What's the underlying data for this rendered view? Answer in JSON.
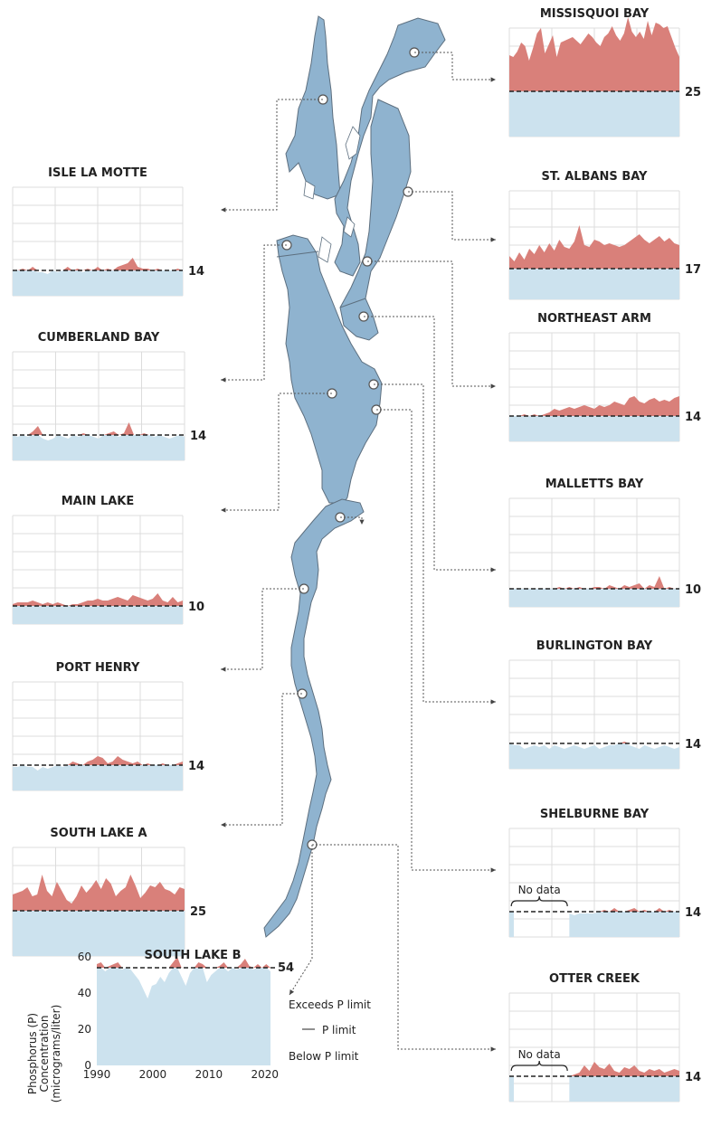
{
  "colors": {
    "exceed": "#d9807a",
    "below": "#cce2ee",
    "lake": "#8fb3cf",
    "lake_stroke": "#5d6f7f",
    "grid": "#dcdcdc"
  },
  "chart_data": [
    {
      "type": "area",
      "title": "MISSISQUOI BAY",
      "limit": 25,
      "limit_label": "25",
      "side": "right",
      "ylim": [
        0,
        60
      ],
      "values": [
        45,
        44,
        47,
        52,
        50,
        42,
        49,
        57,
        60,
        46,
        51,
        56,
        44,
        52,
        53,
        54,
        55,
        53,
        51,
        54,
        57,
        55,
        52,
        50,
        55,
        57,
        61,
        56,
        53,
        57,
        66,
        58,
        55,
        58,
        54,
        64,
        56,
        63,
        62,
        60,
        61,
        55,
        49,
        44
      ]
    },
    {
      "type": "area",
      "title": "ST. ALBANS BAY",
      "limit": 17,
      "limit_label": "17",
      "side": "right",
      "ylim": [
        0,
        60
      ],
      "values": [
        24,
        21,
        26,
        22,
        28,
        25,
        30,
        26,
        31,
        27,
        33,
        29,
        28,
        32,
        41,
        30,
        29,
        33,
        32,
        30,
        31,
        30,
        29,
        30,
        32,
        34,
        36,
        33,
        31,
        33,
        35,
        32,
        34,
        31,
        30
      ]
    },
    {
      "type": "area",
      "title": "NORTHEAST ARM",
      "limit": 14,
      "limit_label": "14",
      "side": "right",
      "ylim": [
        0,
        60
      ],
      "values": [
        14,
        14,
        14,
        15,
        14,
        15,
        14,
        15,
        16,
        18,
        17,
        18,
        19,
        18,
        19,
        20,
        19,
        18,
        20,
        19,
        20,
        22,
        21,
        20,
        24,
        25,
        22,
        21,
        23,
        24,
        22,
        23,
        22,
        24,
        25
      ]
    },
    {
      "type": "area",
      "title": "MALLETTS BAY",
      "limit": 10,
      "limit_label": "10",
      "side": "right",
      "ylim": [
        0,
        60
      ],
      "values": [
        10,
        10,
        10,
        10,
        10,
        10,
        10,
        10,
        10,
        10,
        11,
        10,
        11,
        10,
        11,
        10,
        10,
        11,
        11,
        10,
        12,
        11,
        10,
        12,
        11,
        12,
        13,
        10,
        12,
        11,
        17,
        10,
        11,
        10,
        10
      ]
    },
    {
      "type": "area",
      "title": "BURLINGTON BAY",
      "limit": 14,
      "limit_label": "14",
      "side": "right",
      "ylim": [
        0,
        60
      ],
      "values": [
        14,
        13,
        13,
        11,
        12,
        13,
        12,
        13,
        11,
        13,
        12,
        11,
        12,
        13,
        12,
        11,
        12,
        13,
        11,
        12,
        13,
        13,
        14,
        15,
        13,
        12,
        11,
        13,
        12,
        11,
        12,
        13,
        12,
        11,
        12
      ]
    },
    {
      "type": "area",
      "title": "SHELBURNE BAY",
      "limit": 14,
      "limit_label": "14",
      "side": "right",
      "ylim": [
        0,
        60
      ],
      "gap_start": 1,
      "gap_end": 12,
      "no_data_label": "No data",
      "values": [
        14,
        null,
        null,
        null,
        null,
        null,
        null,
        null,
        null,
        null,
        null,
        null,
        13,
        12,
        13,
        13,
        13,
        13,
        14,
        15,
        14,
        16,
        14,
        14,
        15,
        16,
        14,
        15,
        14,
        14,
        16,
        14,
        15,
        14,
        14
      ]
    },
    {
      "type": "area",
      "title": "OTTER CREEK",
      "limit": 14,
      "limit_label": "14",
      "side": "right",
      "ylim": [
        0,
        60
      ],
      "gap_start": 1,
      "gap_end": 12,
      "no_data_label": "No data",
      "values": [
        14,
        null,
        null,
        null,
        null,
        null,
        null,
        null,
        null,
        null,
        null,
        null,
        14,
        15,
        16,
        20,
        17,
        22,
        19,
        18,
        21,
        17,
        16,
        19,
        18,
        20,
        17,
        16,
        18,
        17,
        18,
        16,
        17,
        18,
        17
      ]
    },
    {
      "type": "area",
      "title": "ISLE LA MOTTE",
      "limit": 14,
      "limit_label": "14",
      "side": "left",
      "ylim": [
        0,
        60
      ],
      "values": [
        14,
        14,
        15,
        14,
        16,
        13,
        13,
        12,
        14,
        13,
        14,
        16,
        14,
        15,
        13,
        15,
        14,
        16,
        14,
        15,
        14,
        16,
        17,
        18,
        21,
        16,
        15,
        15,
        14,
        15,
        14,
        14,
        14,
        15,
        14
      ]
    },
    {
      "type": "area",
      "title": "CUMBERLAND BAY",
      "limit": 14,
      "limit_label": "14",
      "side": "left",
      "ylim": [
        0,
        60
      ],
      "values": [
        14,
        13,
        14,
        13,
        16,
        19,
        12,
        11,
        12,
        14,
        13,
        12,
        14,
        13,
        15,
        14,
        13,
        12,
        14,
        15,
        16,
        13,
        15,
        21,
        14,
        14,
        15,
        14,
        13,
        14,
        13,
        12,
        13,
        14,
        13
      ]
    },
    {
      "type": "area",
      "title": "MAIN LAKE",
      "limit": 10,
      "limit_label": "10",
      "side": "left",
      "ylim": [
        0,
        60
      ],
      "values": [
        11,
        12,
        12,
        12,
        13,
        12,
        11,
        12,
        11,
        12,
        11,
        10,
        11,
        11,
        12,
        13,
        13,
        14,
        13,
        13,
        14,
        15,
        14,
        13,
        16,
        15,
        14,
        13,
        14,
        17,
        13,
        12,
        15,
        12,
        13
      ]
    },
    {
      "type": "area",
      "title": "PORT HENRY",
      "limit": 14,
      "limit_label": "14",
      "side": "left",
      "ylim": [
        0,
        60
      ],
      "values": [
        13,
        13,
        14,
        13,
        13,
        11,
        13,
        12,
        13,
        14,
        13,
        14,
        16,
        15,
        14,
        16,
        17,
        19,
        18,
        15,
        16,
        19,
        17,
        16,
        15,
        16,
        14,
        15,
        14,
        14,
        15,
        14,
        14,
        15,
        16
      ]
    },
    {
      "type": "area",
      "title": "SOUTH LAKE A",
      "limit": 25,
      "limit_label": "25",
      "side": "left",
      "ylim": [
        0,
        60
      ],
      "values": [
        34,
        35,
        36,
        38,
        33,
        34,
        45,
        36,
        33,
        41,
        36,
        31,
        29,
        33,
        39,
        35,
        38,
        42,
        37,
        43,
        40,
        33,
        36,
        38,
        45,
        39,
        32,
        35,
        39,
        38,
        41,
        37,
        36,
        34,
        38,
        37
      ]
    },
    {
      "type": "area",
      "title": "SOUTH LAKE B",
      "limit": 54,
      "limit_label": "54",
      "side": "left",
      "ylim": [
        0,
        60
      ],
      "ylabel": "Phosphorus (P) Concentration (micrograms/liter)",
      "yticks": [
        0,
        20,
        40,
        60
      ],
      "xticks": [
        1990,
        2000,
        2010,
        2020
      ],
      "x_start": 1990,
      "x_end": 2021,
      "values": [
        56,
        57,
        52,
        55,
        56,
        57,
        53,
        54,
        53,
        50,
        47,
        42,
        37,
        44,
        45,
        49,
        46,
        51,
        57,
        60,
        49,
        44,
        51,
        54,
        57,
        56,
        46,
        50,
        52,
        55,
        57,
        52,
        54,
        53,
        56,
        59,
        55,
        53,
        56,
        54,
        56,
        52
      ]
    }
  ],
  "legend": {
    "exceeds": "Exceeds P limit",
    "limit": "P limit",
    "below": "Below P limit",
    "limit_dash": "—"
  }
}
